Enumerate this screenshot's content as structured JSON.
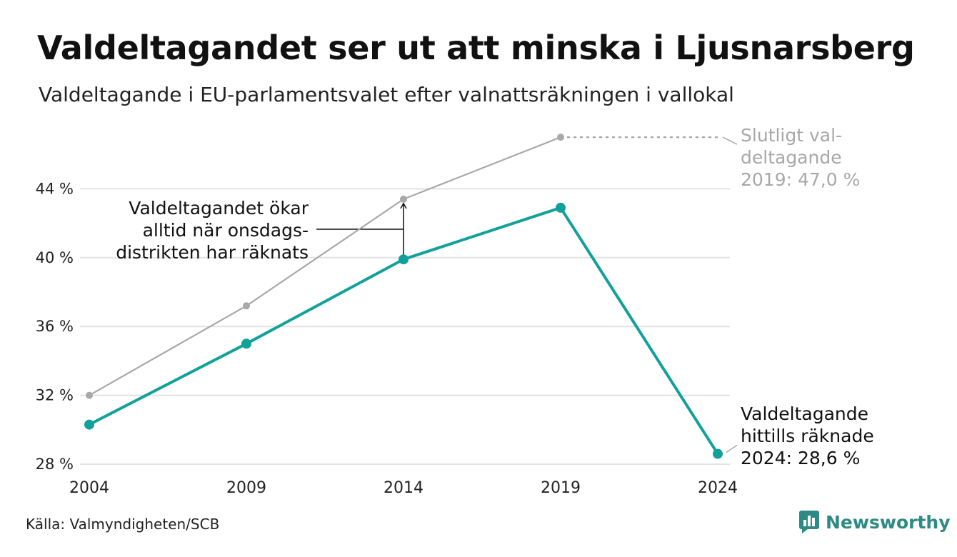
{
  "header": {
    "title": "Valdeltagandet ser ut att minska i Ljusnarsberg",
    "subtitle": "Valdeltagande i EU-parlamentsvalet efter valnattsräkningen i vallokal"
  },
  "footer": {
    "source": "Källa: Valmyndigheten/SCB",
    "brand": "Newsworthy"
  },
  "colors": {
    "teal": "#12a19a",
    "grey": "#a8a8a8",
    "grid": "#e2e2e2",
    "brand": "#2e8a84"
  },
  "icons": {
    "brand_logo": "newsworthy-logo-icon"
  },
  "chart_data": {
    "type": "line",
    "x": [
      2004,
      2009,
      2014,
      2019,
      2024
    ],
    "x_tick_labels": [
      "2004",
      "2009",
      "2014",
      "2019",
      "2024"
    ],
    "ylim": [
      28,
      47.5
    ],
    "y_ticks": [
      28,
      32,
      36,
      40,
      44
    ],
    "y_tick_labels": [
      "28 %",
      "32 %",
      "36 %",
      "40 %",
      "44 %"
    ],
    "grid": true,
    "series": [
      {
        "key": "valnatt",
        "color": "#12a19a",
        "values": [
          30.3,
          35.0,
          39.9,
          42.9,
          28.6
        ]
      },
      {
        "key": "slutligt",
        "color": "#a8a8a8",
        "values": [
          32.0,
          37.2,
          43.4,
          47.0,
          null
        ]
      }
    ],
    "annotations": {
      "arrow": [
        "Valdeltagandet ökar",
        "alltid när onsdags-",
        "distrikten har räknats"
      ],
      "final_2019": [
        "Slutligt val-",
        "deltagande",
        "2019: 47,0 %"
      ],
      "counted_2024": [
        "Valdeltagande",
        "hittills räknade",
        "2024: 28,6 %"
      ]
    }
  }
}
